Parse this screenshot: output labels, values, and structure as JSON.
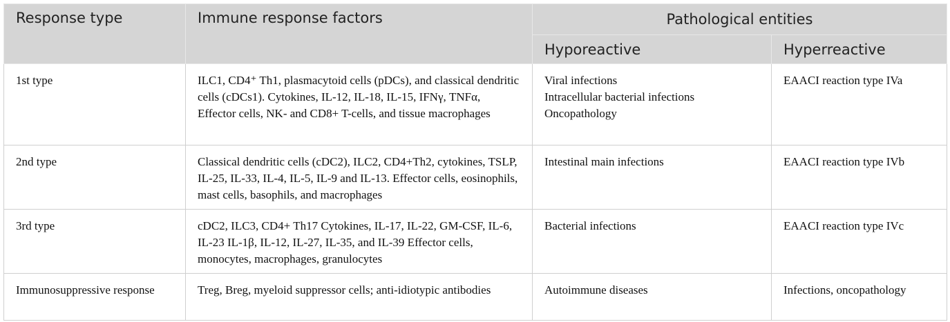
{
  "table": {
    "header": {
      "response_type": "Response type",
      "factors": "Immune response factors",
      "entities": "Pathological entities",
      "hypo": "Hyporeactive",
      "hyper": "Hyperreactive"
    },
    "rows": [
      [
        "1st type",
        "ILC1, CD4⁺ Th1, plasmacytoid cells (pDCs), and classical dendritic cells (cDCs1). Cytokines, IL-12, IL-18, IL-15, IFNγ, TNFα, Effector cells, NK- and CD8+ T-cells, and tissue macrophages",
        [
          "Viral infections",
          "Intracellular bacterial infections",
          "Oncopathology"
        ],
        "EAACI reaction type IVa"
      ],
      [
        "2nd type",
        "Classical dendritic cells (cDC2), ILC2, CD4+Th2, cytokines, TSLP, IL-25, IL-33, IL-4, IL-5, IL-9 and IL-13. Effector cells, eosinophils, mast cells, basophils, and macrophages",
        [
          "Intestinal main infections"
        ],
        "EAACI reaction type IVb"
      ],
      [
        "3rd type",
        "cDC2, ILC3, CD4+ Th17 Cytokines, IL-17, IL-22, GM-CSF, IL-6, IL-23 IL-1β, IL-12, IL-27, IL-35, and IL-39 Effector cells, monocytes, macrophages, granulocytes",
        [
          "Bacterial infections"
        ],
        "EAACI reaction type IVc"
      ],
      [
        "Immunosuppressive response",
        "Treg, Breg, myeloid suppressor cells; anti-idiotypic antibodies",
        [
          "Autoimmune diseases"
        ],
        "Infections, oncopathology"
      ]
    ]
  }
}
